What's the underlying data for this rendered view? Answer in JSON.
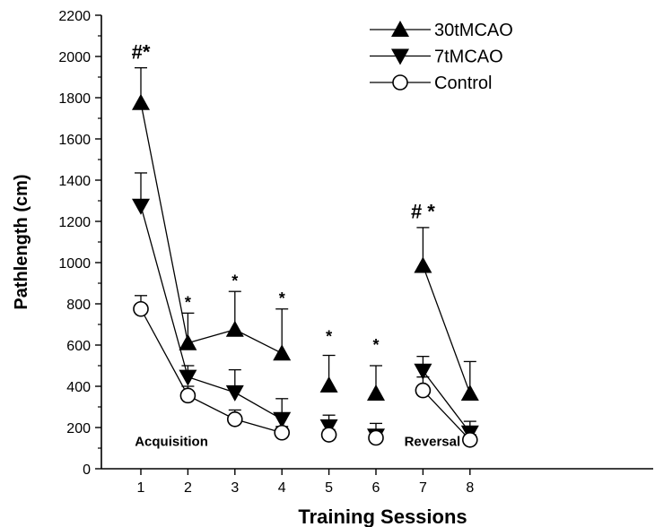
{
  "chart_data": {
    "type": "line",
    "title": "",
    "xlabel": "Training Sessions",
    "ylabel": "Pathlength (cm)",
    "ylim": [
      0,
      2200
    ],
    "yticks": [
      0,
      200,
      400,
      600,
      800,
      1000,
      1200,
      1400,
      1600,
      1800,
      2000,
      2200
    ],
    "xticks": [
      1,
      2,
      3,
      4,
      5,
      6,
      7,
      8
    ],
    "x_segments": [
      [
        1,
        2,
        3,
        4
      ],
      [
        7,
        8
      ]
    ],
    "legend_placement": "top-center",
    "series": [
      {
        "name": "30tMCAO",
        "marker": "triangle-up",
        "x": [
          1,
          2,
          3,
          4,
          5,
          6,
          7,
          8
        ],
        "values": [
          1775,
          610,
          675,
          560,
          405,
          365,
          985,
          365
        ],
        "error": [
          170,
          145,
          185,
          215,
          145,
          135,
          185,
          155
        ]
      },
      {
        "name": "7tMCAO",
        "marker": "triangle-down",
        "x": [
          1,
          2,
          3,
          4,
          5,
          6,
          7,
          8
        ],
        "values": [
          1275,
          445,
          370,
          240,
          205,
          160,
          475,
          175
        ],
        "error": [
          160,
          55,
          110,
          100,
          55,
          60,
          70,
          55
        ]
      },
      {
        "name": "Control",
        "marker": "circle-open",
        "x": [
          1,
          2,
          3,
          4,
          5,
          6,
          7,
          8
        ],
        "values": [
          775,
          355,
          240,
          175,
          165,
          150,
          380,
          140
        ],
        "error": [
          65,
          45,
          45,
          30,
          25,
          25,
          65,
          25
        ]
      }
    ],
    "annotations": [
      {
        "text": "#*",
        "x": 1,
        "y": 1990
      },
      {
        "text": "*",
        "x": 2,
        "y": 780
      },
      {
        "text": "*",
        "x": 3,
        "y": 885
      },
      {
        "text": "*",
        "x": 4,
        "y": 800
      },
      {
        "text": "*",
        "x": 5,
        "y": 615
      },
      {
        "text": "*",
        "x": 6,
        "y": 575
      },
      {
        "text": "# *",
        "x": 7,
        "y": 1215
      },
      {
        "text": "Acquisition",
        "x": 1.65,
        "y": 110
      },
      {
        "text": "Reversal",
        "x": 7.2,
        "y": 110
      }
    ]
  }
}
